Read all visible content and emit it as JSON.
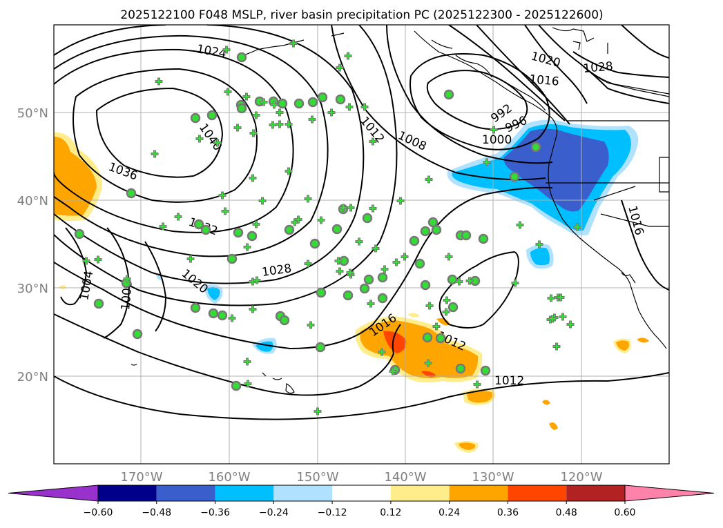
{
  "title": "2025122100 F048 MSLP, river basin precipitation PC (2025122300 - 2025122600)",
  "map": {
    "lat_labels": [
      "50°N",
      "40°N",
      "30°N",
      "20°N"
    ],
    "lon_labels": [
      "170°W",
      "160°W",
      "150°W",
      "140°W",
      "130°W",
      "120°W"
    ],
    "contour_labels": [
      "1024",
      "1040",
      "1036",
      "1032",
      "1028",
      "1020",
      "1016",
      "1012",
      "1008",
      "1004",
      "1008",
      "1000",
      "996",
      "992",
      "1028",
      "1020",
      "1016",
      "1012",
      "1016"
    ],
    "colors": {
      "contour": "#000000",
      "coast": "#000000",
      "grid": "#b0b0b0",
      "label_gray": "#808080",
      "marker_fill": "#33dd33",
      "circle_edge": "#777777"
    }
  },
  "colorbar": {
    "tick_labels": [
      "−0.60",
      "−0.48",
      "−0.36",
      "−0.24",
      "−0.12",
      "0.12",
      "0.24",
      "0.36",
      "0.48",
      "0.60"
    ],
    "levels": [
      -0.6,
      -0.48,
      -0.36,
      -0.24,
      -0.12,
      0.12,
      0.24,
      0.36,
      0.48,
      0.6
    ],
    "colors": [
      "#9932cc",
      "#00008b",
      "#3a5fcd",
      "#00bfff",
      "#b0e2ff",
      "#ffffff",
      "#ffec8b",
      "#ffa500",
      "#ff4500",
      "#b22222",
      "#ff82ab"
    ],
    "extend": "both"
  }
}
